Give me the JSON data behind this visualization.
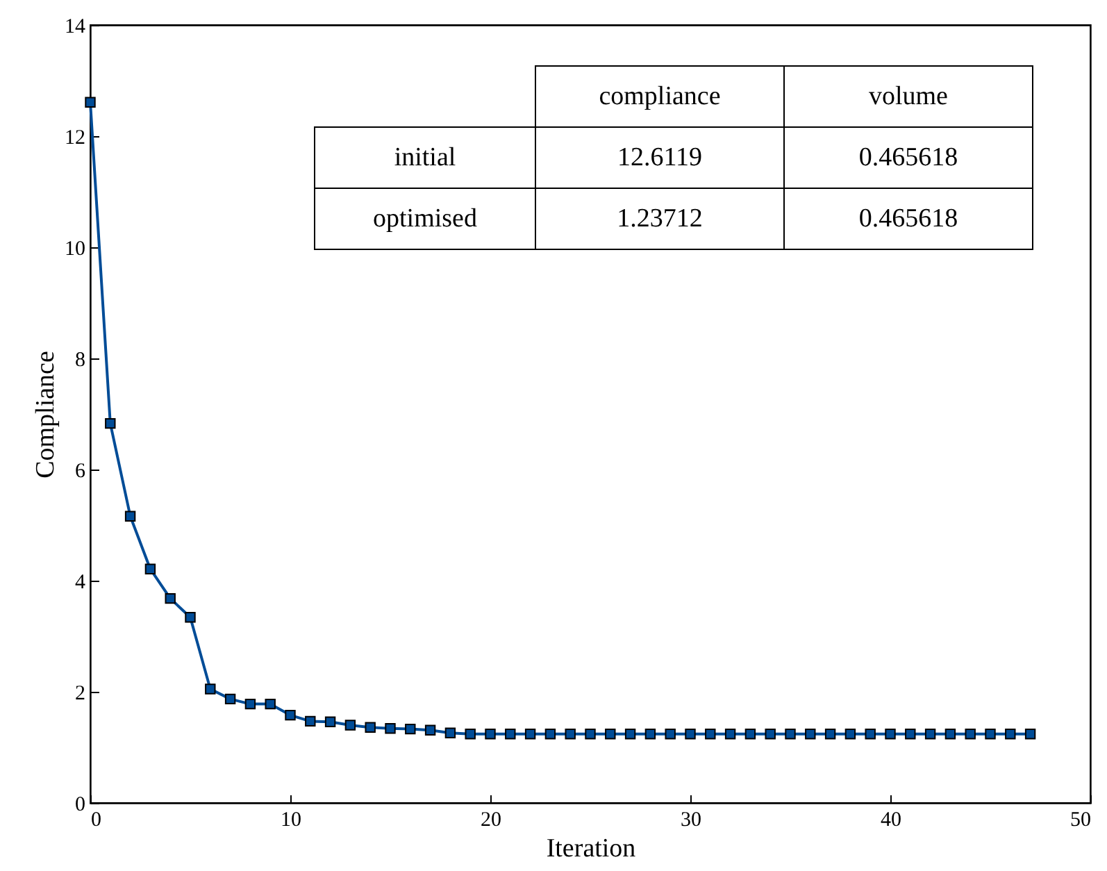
{
  "chart_data": {
    "type": "line",
    "xlabel": "Iteration",
    "ylabel": "Compliance",
    "x": [
      0,
      1,
      2,
      3,
      4,
      5,
      6,
      7,
      8,
      9,
      10,
      11,
      12,
      13,
      14,
      15,
      16,
      17,
      18,
      19,
      20,
      21,
      22,
      23,
      24,
      25,
      26,
      27,
      28,
      29,
      30,
      31,
      32,
      33,
      34,
      35,
      36,
      37,
      38,
      39,
      40,
      41,
      42,
      43,
      44,
      45,
      46,
      47
    ],
    "series": [
      {
        "color": "#004c97",
        "values": [
          12.61,
          6.83,
          5.16,
          4.21,
          3.68,
          3.34,
          2.05,
          1.87,
          1.78,
          1.78,
          1.58,
          1.47,
          1.46,
          1.4,
          1.36,
          1.34,
          1.33,
          1.31,
          1.26,
          1.24,
          1.24,
          1.24,
          1.24,
          1.24,
          1.24,
          1.24,
          1.24,
          1.24,
          1.24,
          1.24,
          1.24,
          1.24,
          1.24,
          1.24,
          1.24,
          1.24,
          1.24,
          1.24,
          1.24,
          1.24,
          1.24,
          1.24,
          1.24,
          1.24,
          1.24,
          1.24,
          1.24,
          1.24
        ]
      }
    ],
    "xlim": [
      0,
      50
    ],
    "xticks": [
      0,
      10,
      20,
      30,
      40,
      50
    ],
    "ylim": [
      0,
      14
    ],
    "yticks": [
      0,
      2,
      4,
      6,
      8,
      10,
      12,
      14
    ],
    "marker": "square",
    "grid": false,
    "annotations": [
      "compliance",
      "volume",
      "initial",
      "12.6119",
      "0.465618",
      "optimised",
      "1.23712",
      "0.465618"
    ]
  }
}
